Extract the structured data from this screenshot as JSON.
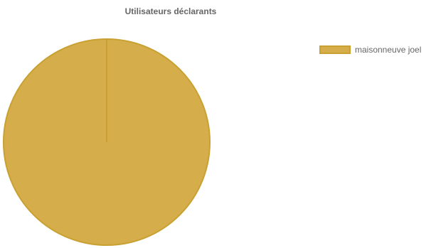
{
  "chart_data": {
    "type": "pie",
    "title": "Utilisateurs déclarants",
    "labels": [
      "maisonneuve joel"
    ],
    "values": [
      1
    ],
    "legend_position": "right",
    "colors": {
      "fill": "#d5ae4b",
      "border": "#c9a032"
    }
  }
}
